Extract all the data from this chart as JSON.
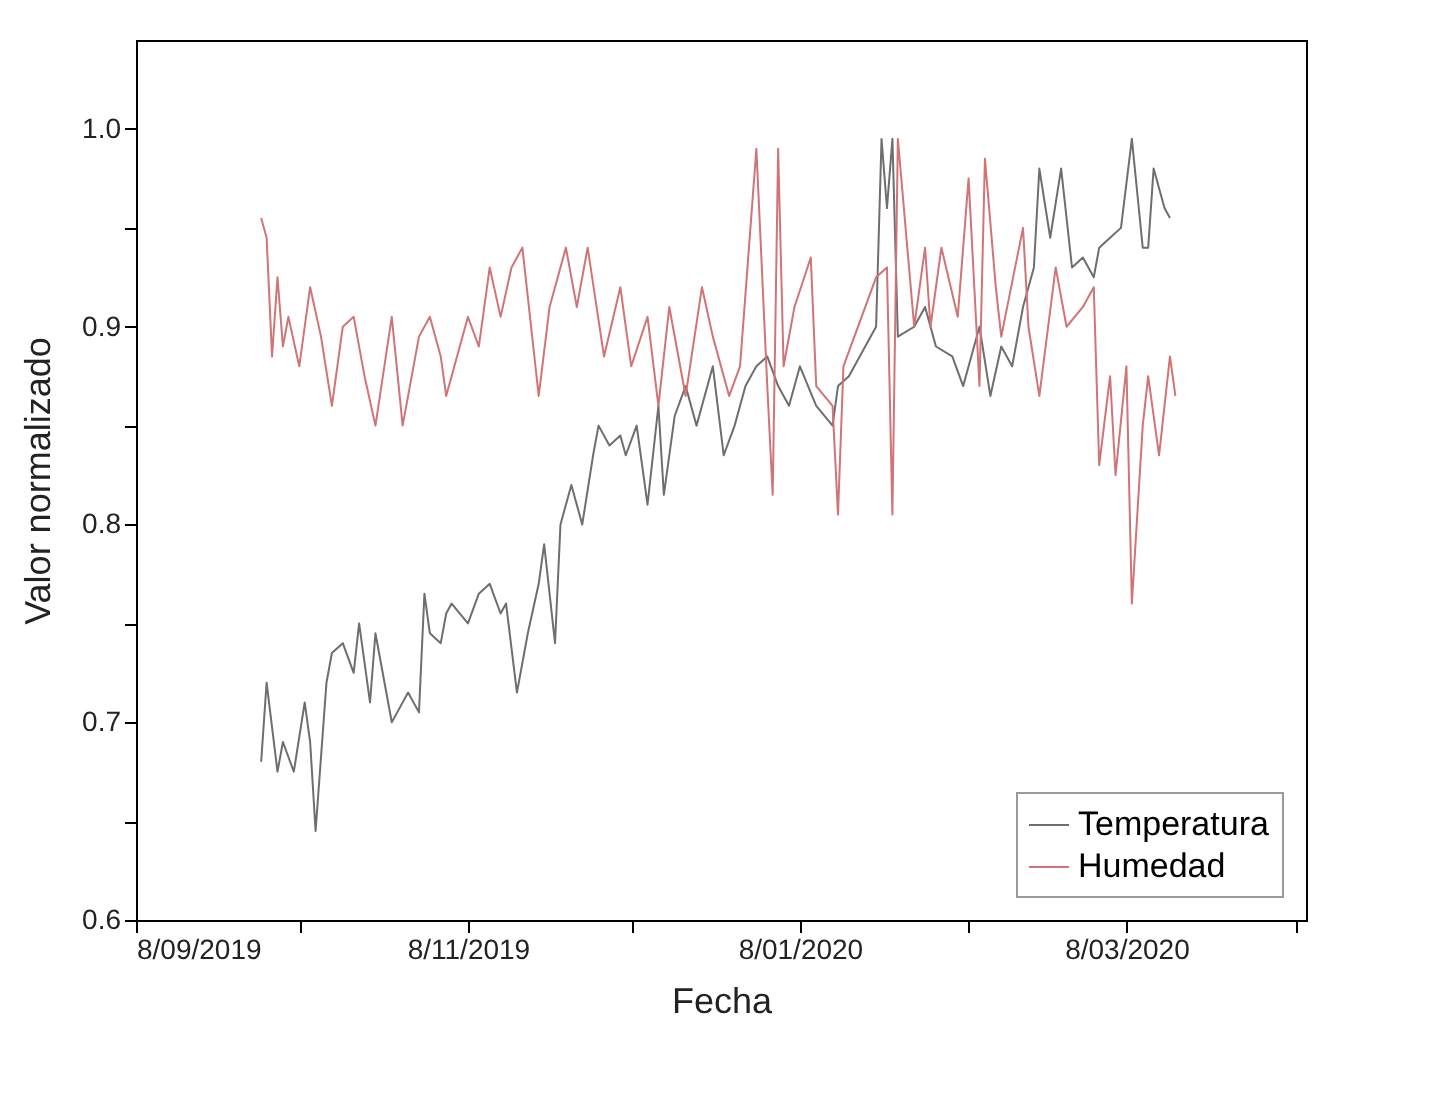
{
  "chart_data": {
    "type": "line",
    "xlabel": "Fecha",
    "ylabel": "Valor normalizado",
    "legend": "bottom right",
    "xlim": [
      "2019-09-08",
      "2020-04-10"
    ],
    "ylim": [
      0.6,
      1.045
    ],
    "xticks": [
      {
        "value": "2019-09-08",
        "label": "8/09/2019"
      },
      {
        "value": "2019-10-08",
        "label": null
      },
      {
        "value": "2019-11-08",
        "label": "8/11/2019"
      },
      {
        "value": "2019-12-08",
        "label": null
      },
      {
        "value": "2020-01-08",
        "label": "8/01/2020"
      },
      {
        "value": "2020-02-08",
        "label": null
      },
      {
        "value": "2020-03-08",
        "label": "8/03/2020"
      },
      {
        "value": "2020-04-08",
        "label": null
      }
    ],
    "yticks": [
      0.6,
      {
        "value": 0.65,
        "label": null
      },
      0.7,
      {
        "value": 0.75,
        "label": null
      },
      0.8,
      {
        "value": 0.85,
        "label": null
      },
      0.9,
      {
        "value": 0.95,
        "label": null
      },
      {
        "value": 1.0,
        "label": "1.0"
      }
    ],
    "series": [
      {
        "name": "Temperatura",
        "color": "#6e6e6e",
        "x": [
          "2019-10-01",
          "2019-10-02",
          "2019-10-04",
          "2019-10-05",
          "2019-10-07",
          "2019-10-09",
          "2019-10-10",
          "2019-10-11",
          "2019-10-13",
          "2019-10-14",
          "2019-10-16",
          "2019-10-18",
          "2019-10-19",
          "2019-10-21",
          "2019-10-22",
          "2019-10-25",
          "2019-10-26",
          "2019-10-28",
          "2019-10-30",
          "2019-10-31",
          "2019-11-01",
          "2019-11-03",
          "2019-11-04",
          "2019-11-05",
          "2019-11-08",
          "2019-11-10",
          "2019-11-12",
          "2019-11-14",
          "2019-11-15",
          "2019-11-17",
          "2019-11-19",
          "2019-11-21",
          "2019-11-22",
          "2019-11-24",
          "2019-11-25",
          "2019-11-27",
          "2019-11-29",
          "2019-12-01",
          "2019-12-02",
          "2019-12-04",
          "2019-12-06",
          "2019-12-07",
          "2019-12-09",
          "2019-12-11",
          "2019-12-13",
          "2019-12-14",
          "2019-12-16",
          "2019-12-18",
          "2019-12-20",
          "2019-12-23",
          "2019-12-25",
          "2019-12-27",
          "2019-12-29",
          "2019-12-31",
          "2020-01-02",
          "2020-01-04",
          "2020-01-06",
          "2020-01-08",
          "2020-01-11",
          "2020-01-14",
          "2020-01-15",
          "2020-01-17",
          "2020-01-20",
          "2020-01-22",
          "2020-01-23",
          "2020-01-24",
          "2020-01-25",
          "2020-01-26",
          "2020-01-29",
          "2020-01-31",
          "2020-02-02",
          "2020-02-05",
          "2020-02-07",
          "2020-02-10",
          "2020-02-12",
          "2020-02-14",
          "2020-02-16",
          "2020-02-18",
          "2020-02-20",
          "2020-02-21",
          "2020-02-23",
          "2020-02-25",
          "2020-02-27",
          "2020-02-29",
          "2020-03-02",
          "2020-03-03",
          "2020-03-05",
          "2020-03-07",
          "2020-03-09",
          "2020-03-11",
          "2020-03-12",
          "2020-03-13",
          "2020-03-15",
          "2020-03-16"
        ],
        "values": [
          0.68,
          0.72,
          0.675,
          0.69,
          0.675,
          0.71,
          0.69,
          0.645,
          0.72,
          0.735,
          0.74,
          0.725,
          0.75,
          0.71,
          0.745,
          0.7,
          0.705,
          0.715,
          0.705,
          0.765,
          0.745,
          0.74,
          0.755,
          0.76,
          0.75,
          0.765,
          0.77,
          0.755,
          0.76,
          0.715,
          0.745,
          0.77,
          0.79,
          0.74,
          0.8,
          0.82,
          0.8,
          0.835,
          0.85,
          0.84,
          0.845,
          0.835,
          0.85,
          0.81,
          0.86,
          0.815,
          0.855,
          0.87,
          0.85,
          0.88,
          0.835,
          0.85,
          0.87,
          0.88,
          0.885,
          0.87,
          0.86,
          0.88,
          0.86,
          0.85,
          0.87,
          0.875,
          0.89,
          0.9,
          0.995,
          0.96,
          0.995,
          0.895,
          0.9,
          0.91,
          0.89,
          0.885,
          0.87,
          0.9,
          0.865,
          0.89,
          0.88,
          0.91,
          0.93,
          0.98,
          0.945,
          0.98,
          0.93,
          0.935,
          0.925,
          0.94,
          0.945,
          0.95,
          0.995,
          0.94,
          0.94,
          0.98,
          0.96,
          0.955
        ]
      },
      {
        "name": "Humedad",
        "color": "#d07476",
        "x": [
          "2019-10-01",
          "2019-10-02",
          "2019-10-03",
          "2019-10-04",
          "2019-10-05",
          "2019-10-06",
          "2019-10-08",
          "2019-10-10",
          "2019-10-12",
          "2019-10-14",
          "2019-10-16",
          "2019-10-18",
          "2019-10-20",
          "2019-10-22",
          "2019-10-25",
          "2019-10-27",
          "2019-10-30",
          "2019-11-01",
          "2019-11-03",
          "2019-11-04",
          "2019-11-08",
          "2019-11-10",
          "2019-11-12",
          "2019-11-14",
          "2019-11-16",
          "2019-11-18",
          "2019-11-21",
          "2019-11-23",
          "2019-11-26",
          "2019-11-28",
          "2019-11-30",
          "2019-12-03",
          "2019-12-06",
          "2019-12-08",
          "2019-12-11",
          "2019-12-13",
          "2019-12-15",
          "2019-12-18",
          "2019-12-21",
          "2019-12-23",
          "2019-12-26",
          "2019-12-28",
          "2019-12-31",
          "2020-01-02",
          "2020-01-03",
          "2020-01-04",
          "2020-01-05",
          "2020-01-07",
          "2020-01-10",
          "2020-01-11",
          "2020-01-14",
          "2020-01-15",
          "2020-01-16",
          "2020-01-22",
          "2020-01-24",
          "2020-01-25",
          "2020-01-26",
          "2020-01-29",
          "2020-01-31",
          "2020-02-01",
          "2020-02-03",
          "2020-02-06",
          "2020-02-08",
          "2020-02-10",
          "2020-02-11",
          "2020-02-13",
          "2020-02-14",
          "2020-02-18",
          "2020-02-19",
          "2020-02-21",
          "2020-02-24",
          "2020-02-26",
          "2020-02-29",
          "2020-03-02",
          "2020-03-03",
          "2020-03-05",
          "2020-03-06",
          "2020-03-08",
          "2020-03-09",
          "2020-03-11",
          "2020-03-12",
          "2020-03-14",
          "2020-03-16",
          "2020-03-17"
        ],
        "values": [
          0.955,
          0.945,
          0.885,
          0.925,
          0.89,
          0.905,
          0.88,
          0.92,
          0.895,
          0.86,
          0.9,
          0.905,
          0.875,
          0.85,
          0.905,
          0.85,
          0.895,
          0.905,
          0.885,
          0.865,
          0.905,
          0.89,
          0.93,
          0.905,
          0.93,
          0.94,
          0.865,
          0.91,
          0.94,
          0.91,
          0.94,
          0.885,
          0.92,
          0.88,
          0.905,
          0.86,
          0.91,
          0.865,
          0.92,
          0.895,
          0.865,
          0.88,
          0.99,
          0.87,
          0.815,
          0.99,
          0.88,
          0.91,
          0.935,
          0.87,
          0.86,
          0.805,
          0.88,
          0.925,
          0.93,
          0.805,
          0.995,
          0.9,
          0.94,
          0.9,
          0.94,
          0.905,
          0.975,
          0.87,
          0.985,
          0.92,
          0.895,
          0.95,
          0.9,
          0.865,
          0.93,
          0.9,
          0.91,
          0.92,
          0.83,
          0.875,
          0.825,
          0.88,
          0.76,
          0.85,
          0.875,
          0.835,
          0.885,
          0.865
        ]
      }
    ]
  }
}
